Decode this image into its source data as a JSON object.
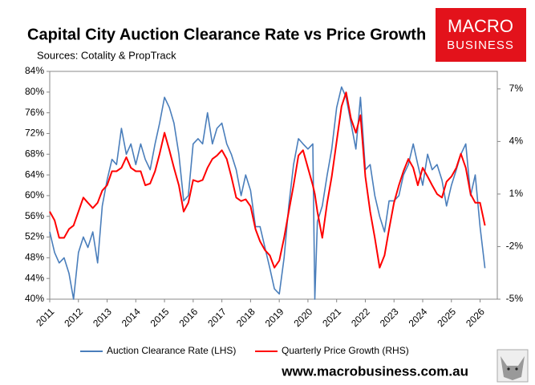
{
  "chart_data": {
    "type": "line",
    "title": "Capital City Auction Clearance Rate vs Price Growth",
    "subtitle": "Sources: Cotality & PropTrack",
    "logo": {
      "line1": "MACRO",
      "line2": "BUSINESS"
    },
    "footer": "www.macrobusiness.com.au",
    "grid": false,
    "legend": "bottom",
    "x": [
      2011,
      2011.17,
      2011.33,
      2011.5,
      2011.67,
      2011.83,
      2012,
      2012.17,
      2012.33,
      2012.5,
      2012.67,
      2012.83,
      2013,
      2013.17,
      2013.33,
      2013.5,
      2013.67,
      2013.83,
      2014,
      2014.17,
      2014.33,
      2014.5,
      2014.67,
      2014.83,
      2015,
      2015.17,
      2015.33,
      2015.5,
      2015.67,
      2015.83,
      2016,
      2016.17,
      2016.33,
      2016.5,
      2016.67,
      2016.83,
      2017,
      2017.17,
      2017.33,
      2017.5,
      2017.67,
      2017.83,
      2018,
      2018.17,
      2018.33,
      2018.5,
      2018.67,
      2018.83,
      2019,
      2019.17,
      2019.33,
      2019.5,
      2019.67,
      2019.83,
      2020,
      2020.17,
      2020.24,
      2020.33,
      2020.5,
      2020.67,
      2020.83,
      2021,
      2021.17,
      2021.33,
      2021.5,
      2021.67,
      2021.83,
      2022,
      2022.17,
      2022.33,
      2022.5,
      2022.67,
      2022.83,
      2023,
      2023.17,
      2023.33,
      2023.5,
      2023.67,
      2023.83,
      2024,
      2024.17,
      2024.33,
      2024.5,
      2024.67,
      2024.83,
      2025,
      2025.17,
      2025.33,
      2025.5,
      2025.67,
      2025.83,
      2026,
      2026.17
    ],
    "series": [
      {
        "name": "Auction Clearance Rate (LHS)",
        "color": "#4a7ebb",
        "axis": "y",
        "values": [
          53,
          49,
          47,
          48,
          45,
          40,
          49,
          52,
          50,
          53,
          47,
          58,
          63,
          67,
          66,
          73,
          68,
          70,
          66,
          70,
          67,
          65,
          70,
          74,
          79,
          77,
          74,
          68,
          59,
          60,
          70,
          71,
          70,
          76,
          70,
          73,
          74,
          70,
          68,
          65,
          60,
          64,
          61,
          54,
          54,
          50,
          46,
          42,
          41,
          48,
          58,
          66,
          71,
          70,
          69,
          70,
          40,
          55,
          58,
          64,
          69,
          77,
          81,
          79,
          74,
          69,
          79,
          65,
          66,
          60,
          56,
          53,
          59,
          59,
          60,
          64,
          66,
          70,
          66,
          62,
          68,
          65,
          66,
          63,
          58,
          62,
          65,
          68,
          70,
          60,
          64,
          54,
          46
        ]
      },
      {
        "name": "Quarterly Price Growth (RHS)",
        "color": "#ff0000",
        "axis": "y2",
        "values": [
          0,
          -0.5,
          -1.5,
          -1.5,
          -1,
          -0.8,
          0,
          0.8,
          0.5,
          0.2,
          0.5,
          1.2,
          1.5,
          2.3,
          2.3,
          2.5,
          3.1,
          2.5,
          2.3,
          2.3,
          1.5,
          1.6,
          2.3,
          3.3,
          4.5,
          3.5,
          2.5,
          1.5,
          0,
          0.5,
          1.8,
          1.7,
          1.8,
          2.5,
          3,
          3.2,
          3.5,
          3,
          2,
          0.8,
          0.6,
          0.7,
          0.3,
          -1,
          -1.7,
          -2.2,
          -2.5,
          -3.2,
          -2.8,
          -1.5,
          0,
          1.5,
          3.2,
          3.5,
          2.5,
          1.5,
          1,
          0,
          -1.5,
          0.5,
          2,
          4,
          6,
          6.8,
          5.3,
          4.5,
          5.5,
          2,
          0,
          -1.5,
          -3.2,
          -2.5,
          -1,
          0.5,
          1.5,
          2.3,
          3,
          2.5,
          1.5,
          2.5,
          2,
          1.5,
          1,
          0.8,
          1.7,
          2,
          2.5,
          3.3,
          2.5,
          1,
          0.5,
          0.5,
          -0.8
        ]
      }
    ],
    "xlim": [
      2011,
      2026.6
    ],
    "xticks": [
      2011,
      2012,
      2013,
      2014,
      2015,
      2016,
      2017,
      2018,
      2019,
      2020,
      2021,
      2022,
      2023,
      2024,
      2025,
      2026
    ],
    "ylim": [
      40,
      84
    ],
    "yticks": [
      {
        "value": 40,
        "label": "40%"
      },
      {
        "value": 44,
        "label": "44%"
      },
      {
        "value": 48,
        "label": "48%"
      },
      {
        "value": 52,
        "label": "52%"
      },
      {
        "value": 56,
        "label": "56%"
      },
      {
        "value": 60,
        "label": "60%"
      },
      {
        "value": 64,
        "label": "64%"
      },
      {
        "value": 68,
        "label": "68%"
      },
      {
        "value": 72,
        "label": "72%"
      },
      {
        "value": 76,
        "label": "76%"
      },
      {
        "value": 80,
        "label": "80%"
      },
      {
        "value": 84,
        "label": "84%"
      }
    ],
    "y2lim": [
      -5,
      8
    ],
    "y2ticks": [
      {
        "value": -5,
        "label": "-5%"
      },
      {
        "value": -2,
        "label": "-2%"
      },
      {
        "value": 1,
        "label": "1%"
      },
      {
        "value": 4,
        "label": "4%"
      },
      {
        "value": 7,
        "label": "7%"
      }
    ]
  }
}
